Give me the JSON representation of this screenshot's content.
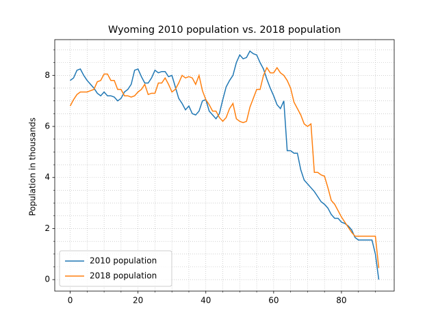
{
  "chart_data": {
    "type": "line",
    "title": "Wyoming 2010 population vs. 2018 population",
    "y_label": "Population in thousands",
    "x": [
      0,
      1,
      2,
      3,
      4,
      5,
      6,
      7,
      8,
      9,
      10,
      11,
      12,
      13,
      14,
      15,
      16,
      17,
      18,
      19,
      20,
      21,
      22,
      23,
      24,
      25,
      26,
      27,
      28,
      29,
      30,
      31,
      32,
      33,
      34,
      35,
      36,
      37,
      38,
      39,
      40,
      41,
      42,
      43,
      44,
      45,
      46,
      47,
      48,
      49,
      50,
      51,
      52,
      53,
      54,
      55,
      56,
      57,
      58,
      59,
      60,
      61,
      62,
      63,
      64,
      65,
      66,
      67,
      68,
      69,
      70,
      71,
      72,
      73,
      74,
      75,
      76,
      77,
      78,
      79,
      80,
      81,
      82,
      83,
      84,
      85,
      86,
      87,
      88,
      89,
      90,
      91
    ],
    "series": [
      {
        "name": "2010 population",
        "color": "#1f77b4",
        "values": [
          7.8,
          7.9,
          8.2,
          8.25,
          8.0,
          7.8,
          7.65,
          7.5,
          7.3,
          7.2,
          7.35,
          7.2,
          7.2,
          7.15,
          7.0,
          7.1,
          7.35,
          7.45,
          7.65,
          8.2,
          8.25,
          7.95,
          7.7,
          7.7,
          7.9,
          8.2,
          8.1,
          8.15,
          8.15,
          7.95,
          8.0,
          7.55,
          7.1,
          6.9,
          6.65,
          6.8,
          6.5,
          6.45,
          6.6,
          7.0,
          7.05,
          6.6,
          6.45,
          6.3,
          6.5,
          7.05,
          7.55,
          7.8,
          8.0,
          8.5,
          8.8,
          8.65,
          8.7,
          8.95,
          8.85,
          8.8,
          8.5,
          8.25,
          7.85,
          7.5,
          7.2,
          6.85,
          6.7,
          7.0,
          5.05,
          5.05,
          4.95,
          4.95,
          4.3,
          3.9,
          3.75,
          3.6,
          3.45,
          3.25,
          3.05,
          2.95,
          2.8,
          2.55,
          2.4,
          2.4,
          2.25,
          2.2,
          2.1,
          1.95,
          1.65,
          1.55,
          1.55,
          1.55,
          1.55,
          1.55,
          1.0,
          0
        ]
      },
      {
        "name": "2018 population",
        "color": "#ff7f0e",
        "values": [
          6.8,
          7.05,
          7.25,
          7.35,
          7.35,
          7.35,
          7.4,
          7.45,
          7.75,
          7.8,
          8.05,
          8.05,
          7.8,
          7.8,
          7.45,
          7.45,
          7.2,
          7.2,
          7.15,
          7.2,
          7.35,
          7.45,
          7.65,
          7.25,
          7.3,
          7.3,
          7.7,
          7.7,
          7.9,
          7.65,
          7.35,
          7.45,
          7.7,
          8.0,
          7.9,
          7.95,
          7.9,
          7.65,
          8.0,
          7.4,
          7.05,
          6.85,
          6.6,
          6.6,
          6.35,
          6.2,
          6.35,
          6.7,
          6.9,
          6.3,
          6.2,
          6.15,
          6.2,
          6.75,
          7.1,
          7.45,
          7.45,
          8.0,
          8.3,
          8.1,
          8.1,
          8.3,
          8.1,
          8.0,
          7.8,
          7.5,
          6.95,
          6.7,
          6.45,
          6.1,
          6.0,
          6.1,
          4.2,
          4.2,
          4.1,
          4.05,
          3.6,
          3.1,
          2.95,
          2.7,
          2.45,
          2.25,
          2.05,
          1.85,
          1.7,
          1.7,
          1.7,
          1.7,
          1.7,
          1.7,
          1.7,
          0.45
        ]
      }
    ],
    "xlim": [
      -4.55,
      95.55
    ],
    "ylim": [
      -0.45,
      9.4
    ],
    "xticks": [
      0,
      20,
      40,
      60,
      80
    ],
    "yticks": [
      0,
      2,
      4,
      6,
      8
    ],
    "xminorticks": [
      5,
      10,
      15,
      25,
      30,
      35,
      45,
      50,
      55,
      65,
      70,
      75,
      85,
      90
    ],
    "yminorticks": [
      0.5,
      1,
      1.5,
      2.5,
      3,
      3.5,
      4.5,
      5,
      5.5,
      6.5,
      7,
      7.5,
      8.5,
      9
    ],
    "grid": true,
    "legend": "lower left"
  }
}
